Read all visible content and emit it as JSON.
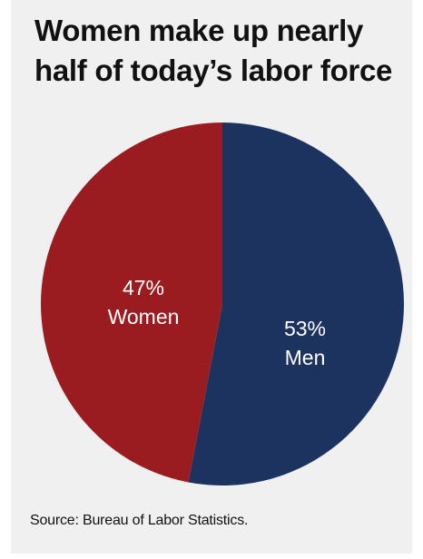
{
  "chart_data": {
    "type": "pie",
    "title": "Women make up nearly half of today’s labor force",
    "title_lines": [
      "Women make up nearly",
      "half of today’s labor force"
    ],
    "slices": [
      {
        "name": "Women",
        "value": 47,
        "value_label": "47%",
        "color": "#9b1c20"
      },
      {
        "name": "Men",
        "value": 53,
        "value_label": "53%",
        "color": "#1c335f"
      }
    ],
    "legend": "none",
    "source": "Source: Bureau of Labor Statistics."
  },
  "colors": {
    "background": "#f0f0f0",
    "text": "#111111",
    "label_text": "#ffffff"
  }
}
